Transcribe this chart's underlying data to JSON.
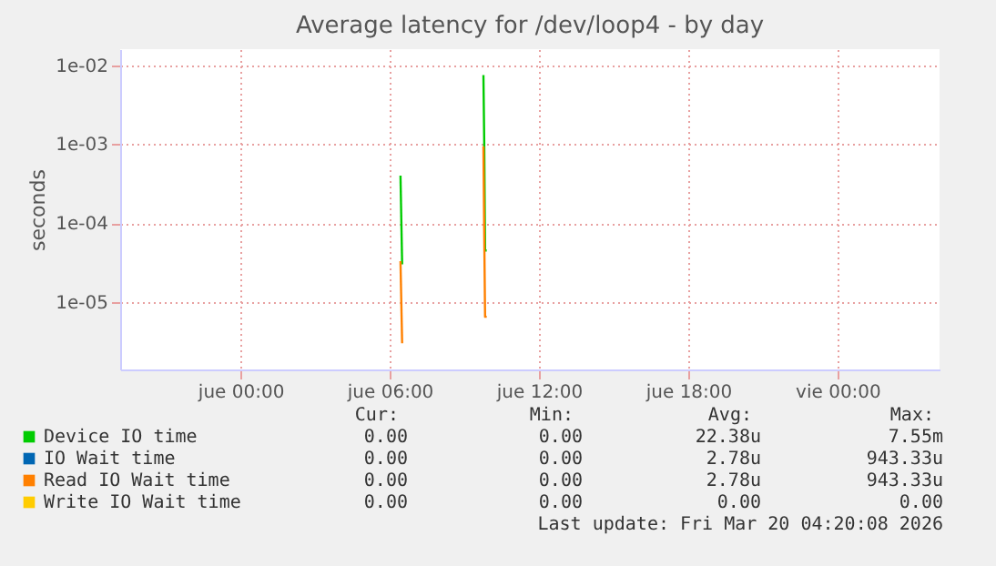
{
  "chart_data": {
    "type": "line",
    "title": "Average latency for /dev/loop4 - by day",
    "ylabel": "seconds",
    "x": [
      "2026-03-19T06:26",
      "2026-03-19T06:30",
      "2026-03-19T09:46",
      "2026-03-19T09:48",
      "2026-03-19T09:50",
      "2026-03-19T09:54"
    ],
    "series": [
      {
        "name": "Device IO time",
        "color": "#00cc00",
        "values": [
          0.0004,
          3e-05,
          0.0075,
          0.001,
          4.5e-05,
          4.5e-05
        ]
      },
      {
        "name": "IO Wait time",
        "color": "#0066b3",
        "values": [
          null,
          null,
          null,
          null,
          null,
          null
        ]
      },
      {
        "name": "Read IO Wait time",
        "color": "#ff8000",
        "values": [
          3.3e-05,
          3e-06,
          0.00094,
          7e-05,
          6.5e-06,
          6.5e-06
        ]
      },
      {
        "name": "Write IO Wait time",
        "color": "#ffcc00",
        "values": [
          null,
          null,
          null,
          null,
          null,
          null
        ]
      }
    ],
    "log": true,
    "xlim": [
      "2026-03-18T19:10",
      "2026-03-20T04:06"
    ],
    "xticks": [
      {
        "value": "2026-03-19T00:00",
        "label": "jue 00:00"
      },
      {
        "value": "2026-03-19T06:00",
        "label": "jue 06:00"
      },
      {
        "value": "2026-03-19T12:00",
        "label": "jue 12:00"
      },
      {
        "value": "2026-03-19T18:00",
        "label": "jue 18:00"
      },
      {
        "value": "2026-03-20T00:00",
        "label": "vie 00:00"
      }
    ],
    "ylim": [
      1.4e-06,
      0.016
    ],
    "yticks": [
      {
        "value": 1e-05,
        "label": "1e-05"
      },
      {
        "value": 0.0001,
        "label": "1e-04"
      },
      {
        "value": 0.001,
        "label": "1e-03"
      },
      {
        "value": 0.01,
        "label": "1e-02"
      }
    ],
    "grid": true,
    "legend": "bottom",
    "annotations": [
      "Cur:",
      "Min:",
      "Avg:",
      "Max:",
      "0.00",
      "0.00",
      "22.38u",
      "7.55m",
      "0.00",
      "0.00",
      "2.78u",
      "943.33u",
      "0.00",
      "0.00",
      "2.78u",
      "943.33u",
      "0.00",
      "0.00",
      "0.00",
      "0.00",
      "Last update: Fri Mar 20 04:20:08 2026"
    ]
  }
}
